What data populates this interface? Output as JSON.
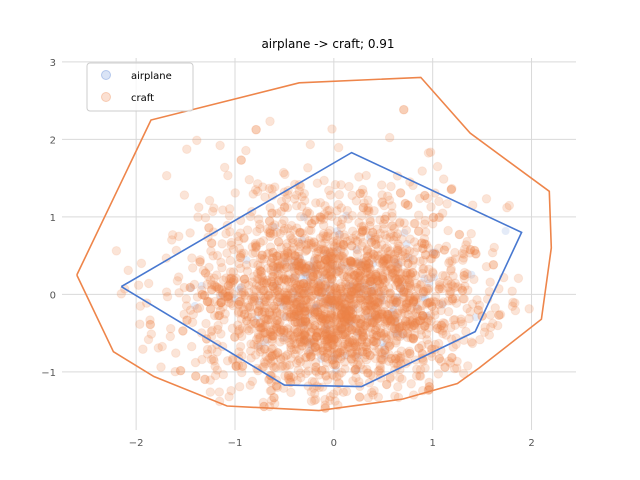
{
  "chart_data": {
    "type": "scatter",
    "title": "airplane -> craft; 0.91",
    "xlabel": "",
    "ylabel": "",
    "xlim": [
      -2.75,
      2.45
    ],
    "ylim": [
      -1.75,
      3.05
    ],
    "x_ticks": [
      -2,
      -1,
      0,
      1,
      2
    ],
    "y_ticks": [
      -1,
      0,
      1,
      2,
      3
    ],
    "x_tick_labels": [
      "−2",
      "−1",
      "0",
      "1",
      "2"
    ],
    "y_tick_labels": [
      "−1",
      "0",
      "1",
      "2",
      "3"
    ],
    "grid": true,
    "legend_position": "top-left",
    "series": [
      {
        "name": "airplane",
        "color": "#4878d0",
        "hull": [
          [
            -2.15,
            0.1
          ],
          [
            -0.5,
            -1.17
          ],
          [
            0.28,
            -1.19
          ],
          [
            1.43,
            -0.48
          ],
          [
            1.9,
            0.8
          ],
          [
            0.18,
            1.83
          ]
        ]
      },
      {
        "name": "craft",
        "color": "#ee854a",
        "hull": [
          [
            -2.6,
            0.25
          ],
          [
            -2.23,
            -0.74
          ],
          [
            -1.82,
            -1.06
          ],
          [
            -1.08,
            -1.44
          ],
          [
            -0.15,
            -1.5
          ],
          [
            0.7,
            -1.35
          ],
          [
            1.25,
            -1.15
          ],
          [
            1.47,
            -0.95
          ],
          [
            2.1,
            -0.32
          ],
          [
            2.2,
            0.6
          ],
          [
            2.18,
            1.33
          ],
          [
            1.38,
            2.08
          ],
          [
            0.88,
            2.8
          ],
          [
            -0.35,
            2.73
          ],
          [
            -1.85,
            2.25
          ],
          [
            -2.6,
            0.25
          ]
        ]
      }
    ]
  }
}
